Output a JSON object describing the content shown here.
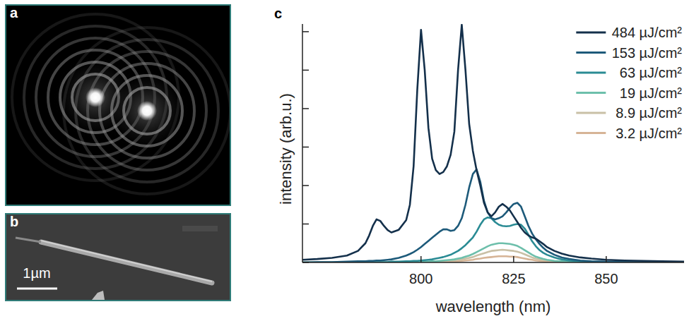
{
  "panels": [
    {
      "label": "a"
    },
    {
      "label": "b",
      "scale_bar": "1µm"
    },
    {
      "label": "c"
    }
  ],
  "chart_data": {
    "type": "line",
    "x_label": "wavelength (nm)",
    "y_label": "intensity (arb.u.)",
    "xlim": [
      768,
      871
    ],
    "xticks": [
      800,
      825,
      850
    ],
    "ylim": [
      0,
      6.2
    ],
    "yticks": [
      0,
      1,
      2,
      3,
      4,
      5,
      6
    ],
    "tick_labels": "x",
    "grid": false,
    "legend": "upper right",
    "x": [
      768,
      772,
      776,
      780,
      783,
      785,
      786,
      787,
      788,
      789,
      790,
      791,
      792,
      794,
      796,
      797,
      798,
      799,
      800,
      801,
      802,
      803,
      804,
      805,
      806,
      807,
      808,
      809,
      810,
      811,
      812,
      813,
      814,
      815,
      816,
      817,
      818,
      819,
      820,
      821,
      822,
      823,
      824,
      825,
      826,
      827,
      828,
      829,
      830,
      831,
      832,
      833,
      834,
      836,
      838,
      840,
      843,
      846,
      850,
      855,
      860,
      865,
      871
    ],
    "series": [
      {
        "name": "484 µJ/cm²",
        "color": "#14304b",
        "values": [
          0.07,
          0.09,
          0.12,
          0.18,
          0.3,
          0.5,
          0.7,
          0.95,
          1.12,
          1.08,
          0.95,
          0.84,
          0.78,
          0.85,
          1.1,
          1.5,
          2.5,
          4.5,
          6.05,
          5.0,
          3.5,
          2.7,
          2.4,
          2.3,
          2.35,
          2.5,
          2.8,
          3.4,
          5.0,
          6.18,
          5.0,
          3.6,
          2.9,
          2.4,
          2.0,
          1.55,
          1.3,
          1.2,
          1.3,
          1.45,
          1.52,
          1.45,
          1.35,
          1.2,
          1.05,
          0.9,
          0.78,
          0.7,
          0.65,
          0.62,
          0.55,
          0.48,
          0.4,
          0.3,
          0.23,
          0.18,
          0.13,
          0.1,
          0.07,
          0.05,
          0.04,
          0.03,
          0.02
        ]
      },
      {
        "name": "153 µJ/cm²",
        "color": "#1d5a7a",
        "values": [
          0,
          0.01,
          0.01,
          0.02,
          0.03,
          0.03,
          0.04,
          0.04,
          0.05,
          0.05,
          0.06,
          0.07,
          0.08,
          0.12,
          0.18,
          0.22,
          0.27,
          0.33,
          0.4,
          0.48,
          0.56,
          0.64,
          0.72,
          0.8,
          0.86,
          0.86,
          0.82,
          0.84,
          0.95,
          1.15,
          1.5,
          1.95,
          2.3,
          2.42,
          2.1,
          1.6,
          1.3,
          1.15,
          1.12,
          1.15,
          1.2,
          1.3,
          1.42,
          1.52,
          1.55,
          1.45,
          1.2,
          0.95,
          0.75,
          0.6,
          0.48,
          0.38,
          0.3,
          0.2,
          0.13,
          0.09,
          0.05,
          0.03,
          0.02,
          0.01,
          0.01,
          0,
          0
        ]
      },
      {
        "name": "63 µJ/cm²",
        "color": "#2a8b94",
        "values": [
          0,
          0,
          0,
          0,
          0,
          0,
          0.01,
          0.01,
          0.01,
          0.01,
          0.01,
          0.01,
          0.02,
          0.02,
          0.03,
          0.03,
          0.04,
          0.04,
          0.05,
          0.06,
          0.07,
          0.08,
          0.1,
          0.12,
          0.14,
          0.17,
          0.2,
          0.25,
          0.3,
          0.37,
          0.45,
          0.55,
          0.65,
          0.8,
          0.98,
          1.12,
          1.17,
          1.15,
          1.05,
          0.98,
          0.95,
          0.94,
          0.95,
          0.98,
          1.0,
          0.98,
          0.88,
          0.72,
          0.55,
          0.42,
          0.32,
          0.25,
          0.2,
          0.13,
          0.08,
          0.05,
          0.03,
          0.02,
          0.01,
          0.01,
          0,
          0,
          0
        ]
      },
      {
        "name": "19 µJ/cm²",
        "color": "#6dbfab",
        "values": [
          0,
          0,
          0,
          0,
          0,
          0,
          0,
          0,
          0,
          0,
          0,
          0,
          0,
          0,
          0.01,
          0.01,
          0.01,
          0.01,
          0.01,
          0.02,
          0.02,
          0.03,
          0.03,
          0.04,
          0.05,
          0.06,
          0.07,
          0.08,
          0.1,
          0.12,
          0.15,
          0.18,
          0.22,
          0.27,
          0.32,
          0.37,
          0.42,
          0.46,
          0.48,
          0.5,
          0.5,
          0.49,
          0.48,
          0.46,
          0.43,
          0.38,
          0.32,
          0.26,
          0.2,
          0.15,
          0.12,
          0.09,
          0.07,
          0.04,
          0.03,
          0.02,
          0.01,
          0,
          0,
          0,
          0,
          0,
          0
        ]
      },
      {
        "name": "8.9 µJ/cm²",
        "color": "#c9c0a6",
        "values": [
          0,
          0,
          0,
          0,
          0,
          0,
          0,
          0,
          0,
          0,
          0,
          0,
          0,
          0,
          0,
          0,
          0,
          0,
          0.01,
          0.01,
          0.01,
          0.02,
          0.02,
          0.03,
          0.03,
          0.04,
          0.05,
          0.05,
          0.07,
          0.08,
          0.1,
          0.12,
          0.14,
          0.18,
          0.21,
          0.24,
          0.27,
          0.3,
          0.31,
          0.32,
          0.33,
          0.32,
          0.31,
          0.3,
          0.28,
          0.25,
          0.21,
          0.17,
          0.13,
          0.1,
          0.08,
          0.06,
          0.05,
          0.03,
          0.02,
          0.01,
          0.01,
          0,
          0,
          0,
          0,
          0,
          0
        ]
      },
      {
        "name": "3.2 µJ/cm²",
        "color": "#d6b496",
        "values": [
          0,
          0,
          0,
          0,
          0,
          0,
          0,
          0,
          0,
          0,
          0,
          0,
          0,
          0,
          0,
          0,
          0,
          0,
          0,
          0,
          0,
          0.01,
          0.01,
          0.01,
          0.01,
          0.02,
          0.02,
          0.02,
          0.03,
          0.04,
          0.05,
          0.06,
          0.07,
          0.09,
          0.1,
          0.12,
          0.13,
          0.14,
          0.15,
          0.16,
          0.16,
          0.16,
          0.15,
          0.15,
          0.14,
          0.12,
          0.1,
          0.08,
          0.07,
          0.05,
          0.04,
          0.03,
          0.02,
          0.01,
          0.01,
          0,
          0,
          0,
          0,
          0,
          0,
          0,
          0
        ]
      }
    ]
  }
}
